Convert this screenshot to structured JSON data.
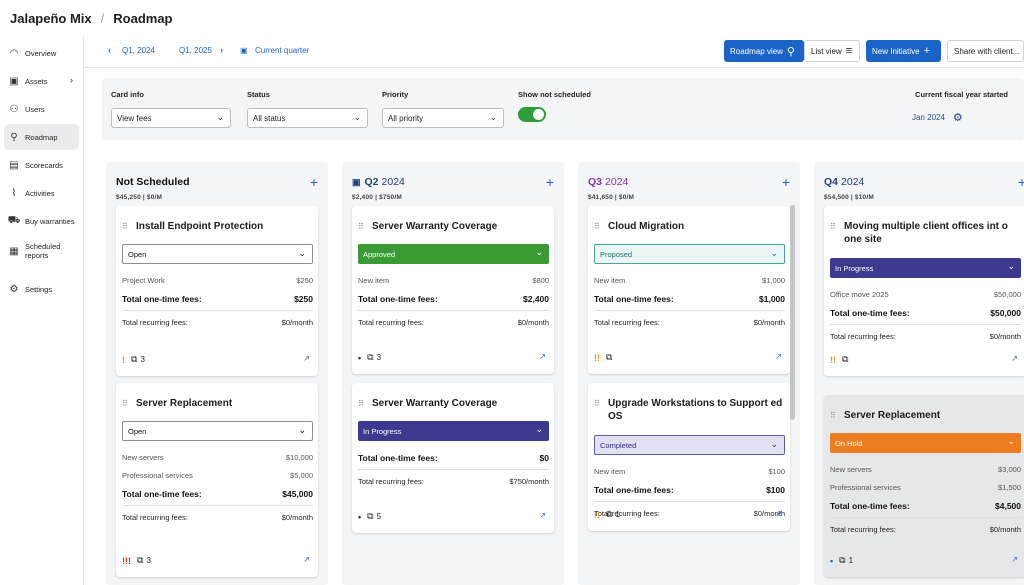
{
  "header": {
    "org": "Jalapeño Mix",
    "separator": "/",
    "page": "Roadmap"
  },
  "sidebar": {
    "items": [
      {
        "label": "Overview",
        "icon": "overview-icon",
        "glyph": "◠"
      },
      {
        "label": "Assets",
        "icon": "assets-icon",
        "glyph": "▣"
      },
      {
        "label": "Users",
        "icon": "users-icon",
        "glyph": "⚇"
      },
      {
        "label": "Roadmap",
        "icon": "roadmap-icon",
        "glyph": "⚲"
      },
      {
        "label": "Scorecards",
        "icon": "scorecards-icon",
        "glyph": "▤"
      },
      {
        "label": "Activities",
        "icon": "activities-icon",
        "glyph": "⌇"
      },
      {
        "label": "Buy warranties",
        "icon": "cart-icon",
        "glyph": "⛟"
      },
      {
        "label": "Scheduled reports",
        "icon": "reports-icon",
        "glyph": "▦"
      },
      {
        "label": "Settings",
        "icon": "gear-icon",
        "glyph": "⚙"
      }
    ]
  },
  "toolbar": {
    "range_start": "Q1, 2024",
    "range_end": "Q1, 2025",
    "current_quarter": "Current quarter",
    "roadmap_view": "Roadmap view",
    "list_view": "List view",
    "new_initiative": "New Initiative",
    "share": "Share with client..."
  },
  "filters": {
    "card_info_label": "Card info",
    "card_info_value": "View fees",
    "status_label": "Status",
    "status_value": "All status",
    "priority_label": "Priority",
    "priority_value": "All priority",
    "show_not_scheduled_label": "Show not scheduled",
    "fiscal_label": "Current fiscal year started",
    "fiscal_value": "Jan 2024"
  },
  "columns": [
    {
      "title": "Not Scheduled",
      "year": "",
      "summary": "$45,250 | $0/M",
      "title_color": "#111111",
      "cards": [
        {
          "title": "Install Endpoint Protection",
          "status": "Open",
          "items": [
            {
              "name": "Project Work",
              "amount": "$250"
            }
          ],
          "total_label": "Total one-time fees:",
          "total": "$250",
          "recurring_label": "Total recurring fees:",
          "recurring": "$0/month",
          "priority": "!",
          "priority_color": "#e8891e",
          "count": "3"
        },
        {
          "title": "Server Replacement",
          "status": "Open",
          "items": [
            {
              "name": "New servers",
              "amount": "$10,000"
            },
            {
              "name": "Professional services",
              "amount": "$5,000"
            }
          ],
          "total_label": "Total one-time fees:",
          "total": "$45,000",
          "recurring_label": "Total recurring fees:",
          "recurring": "$0/month",
          "priority": "!!!",
          "priority_color": "#d32626",
          "count": "3"
        }
      ]
    },
    {
      "title": "Q2",
      "year": "2024",
      "summary": "$2,400 | $750/M",
      "title_color": "#1f3f7a",
      "cards": [
        {
          "title": "Server Warranty Coverage",
          "status": "Approved",
          "items": [
            {
              "name": "New item",
              "amount": "$800"
            }
          ],
          "total_label": "Total one-time fees:",
          "total": "$2,400",
          "recurring_label": "Total recurring fees:",
          "recurring": "$0/month",
          "priority": "•",
          "priority_color": "#333333",
          "count": "3"
        },
        {
          "title": "Server Warranty Coverage",
          "status": "In Progress",
          "items": [],
          "total_label": "Total one-time fees:",
          "total": "$0",
          "recurring_label": "Total recurring fees:",
          "recurring": "$750/month",
          "priority": "•",
          "priority_color": "#333333",
          "count": "5"
        }
      ]
    },
    {
      "title": "Q3",
      "year": "2024",
      "summary": "$41,650 | $0/M",
      "title_color": "#8a2fa8",
      "cards": [
        {
          "title": "Cloud Migration",
          "status": "Proposed",
          "items": [
            {
              "name": "New item",
              "amount": "$1,000"
            }
          ],
          "total_label": "Total one-time fees:",
          "total": "$1,000",
          "recurring_label": "Total recurring fees:",
          "recurring": "$0/month",
          "priority": "!!",
          "priority_color": "#e8891e",
          "count": ""
        },
        {
          "title": "Upgrade Workstations to Support ed OS",
          "status": "Completed",
          "items": [
            {
              "name": "New item",
              "amount": "$100"
            }
          ],
          "total_label": "Total one-time fees:",
          "total": "$100",
          "recurring_label": "Total recurring fees:",
          "recurring": "$0/month",
          "priority": "!!",
          "priority_color": "#e8891e",
          "count": "1"
        }
      ]
    },
    {
      "title": "Q4",
      "year": "2024",
      "summary": "$54,500 | $10/M",
      "title_color": "#1f3f7a",
      "cards": [
        {
          "title": "Moving multiple client offices int o one site",
          "status": "In Progress",
          "items": [
            {
              "name": "Office move 2025",
              "amount": "$50,000"
            }
          ],
          "total_label": "Total one-time fees:",
          "total": "$50,000",
          "recurring_label": "Total recurring fees:",
          "recurring": "$0/month",
          "priority": "!!",
          "priority_color": "#e8891e",
          "count": ""
        },
        {
          "title": "Server Replacement",
          "status": "On Hold",
          "items": [
            {
              "name": "New servers",
              "amount": "$3,000"
            },
            {
              "name": "Professional services",
              "amount": "$1,500"
            }
          ],
          "total_label": "Total one-time fees:",
          "total": "$4,500",
          "recurring_label": "Total recurring fees:",
          "recurring": "$0/month",
          "priority": "•",
          "priority_color": "#1a64c8",
          "count": "1"
        }
      ]
    }
  ]
}
